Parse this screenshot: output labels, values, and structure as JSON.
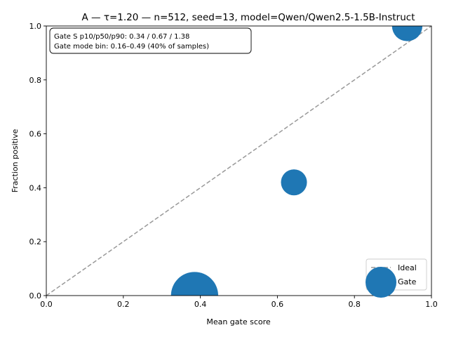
{
  "chart_data": {
    "type": "scatter",
    "title": "A — τ=1.20 — n=512, seed=13, model=Qwen/Qwen2.5-1.5B-Instruct",
    "xlabel": "Mean gate score",
    "ylabel": "Fraction positive",
    "xlim": [
      0,
      1
    ],
    "ylim": [
      0,
      1
    ],
    "x_ticks": [
      "0.0",
      "0.2",
      "0.4",
      "0.6",
      "0.8",
      "1.0"
    ],
    "y_ticks": [
      "0.0",
      "0.2",
      "0.4",
      "0.6",
      "0.8",
      "1.0"
    ],
    "grid": false,
    "annotation": {
      "lines": [
        "Gate S p10/p50/p90: 0.34 / 0.67 / 1.38",
        "Gate mode bin: 0.16–0.49 (40% of samples)"
      ]
    },
    "legend": {
      "placement": "lower-right",
      "entries": [
        {
          "label": "Ideal",
          "kind": "dashed-line",
          "color": "#999999"
        },
        {
          "label": "Gate",
          "kind": "marker",
          "color": "#1f77b4"
        }
      ]
    },
    "ideal_line": {
      "x": [
        0,
        1
      ],
      "y": [
        0,
        1
      ],
      "color": "#999999"
    },
    "series": [
      {
        "name": "Gate",
        "color": "#1f77b4",
        "points": [
          {
            "x": 0.385,
            "y": 0.0,
            "count": 205
          },
          {
            "x": 0.643,
            "y": 0.42,
            "count": 62
          },
          {
            "x": 0.871,
            "y": 0.048,
            "count": 80
          },
          {
            "x": 0.937,
            "y": 1.0,
            "count": 85
          }
        ]
      }
    ]
  }
}
